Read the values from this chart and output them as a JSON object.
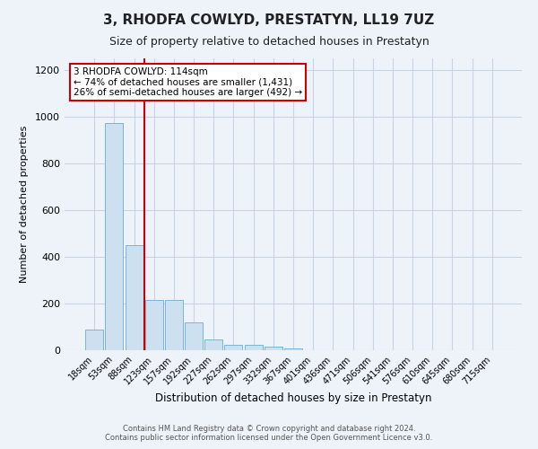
{
  "title": "3, RHODFA COWLYD, PRESTATYN, LL19 7UZ",
  "subtitle": "Size of property relative to detached houses in Prestatyn",
  "xlabel": "Distribution of detached houses by size in Prestatyn",
  "ylabel": "Number of detached properties",
  "bar_labels": [
    "18sqm",
    "53sqm",
    "88sqm",
    "123sqm",
    "157sqm",
    "192sqm",
    "227sqm",
    "262sqm",
    "297sqm",
    "332sqm",
    "367sqm",
    "401sqm",
    "436sqm",
    "471sqm",
    "506sqm",
    "541sqm",
    "576sqm",
    "610sqm",
    "645sqm",
    "680sqm",
    "715sqm"
  ],
  "bar_heights": [
    88,
    975,
    450,
    215,
    215,
    120,
    48,
    25,
    25,
    15,
    8,
    0,
    0,
    0,
    0,
    0,
    0,
    0,
    0,
    0,
    0
  ],
  "bar_color": "#cce0f0",
  "bar_edgecolor": "#7ab4d4",
  "vline_color": "#cc0000",
  "annotation_text": "3 RHODFA COWLYD: 114sqm\n← 74% of detached houses are smaller (1,431)\n26% of semi-detached houses are larger (492) →",
  "annotation_box_edgecolor": "#cc0000",
  "ylim": [
    0,
    1250
  ],
  "yticks": [
    0,
    200,
    400,
    600,
    800,
    1000,
    1200
  ],
  "footer_line1": "Contains HM Land Registry data © Crown copyright and database right 2024.",
  "footer_line2": "Contains public sector information licensed under the Open Government Licence v3.0.",
  "bg_color": "#eef3fa",
  "plot_bg_color": "#eef3fa",
  "grid_color": "#c8d4e4"
}
